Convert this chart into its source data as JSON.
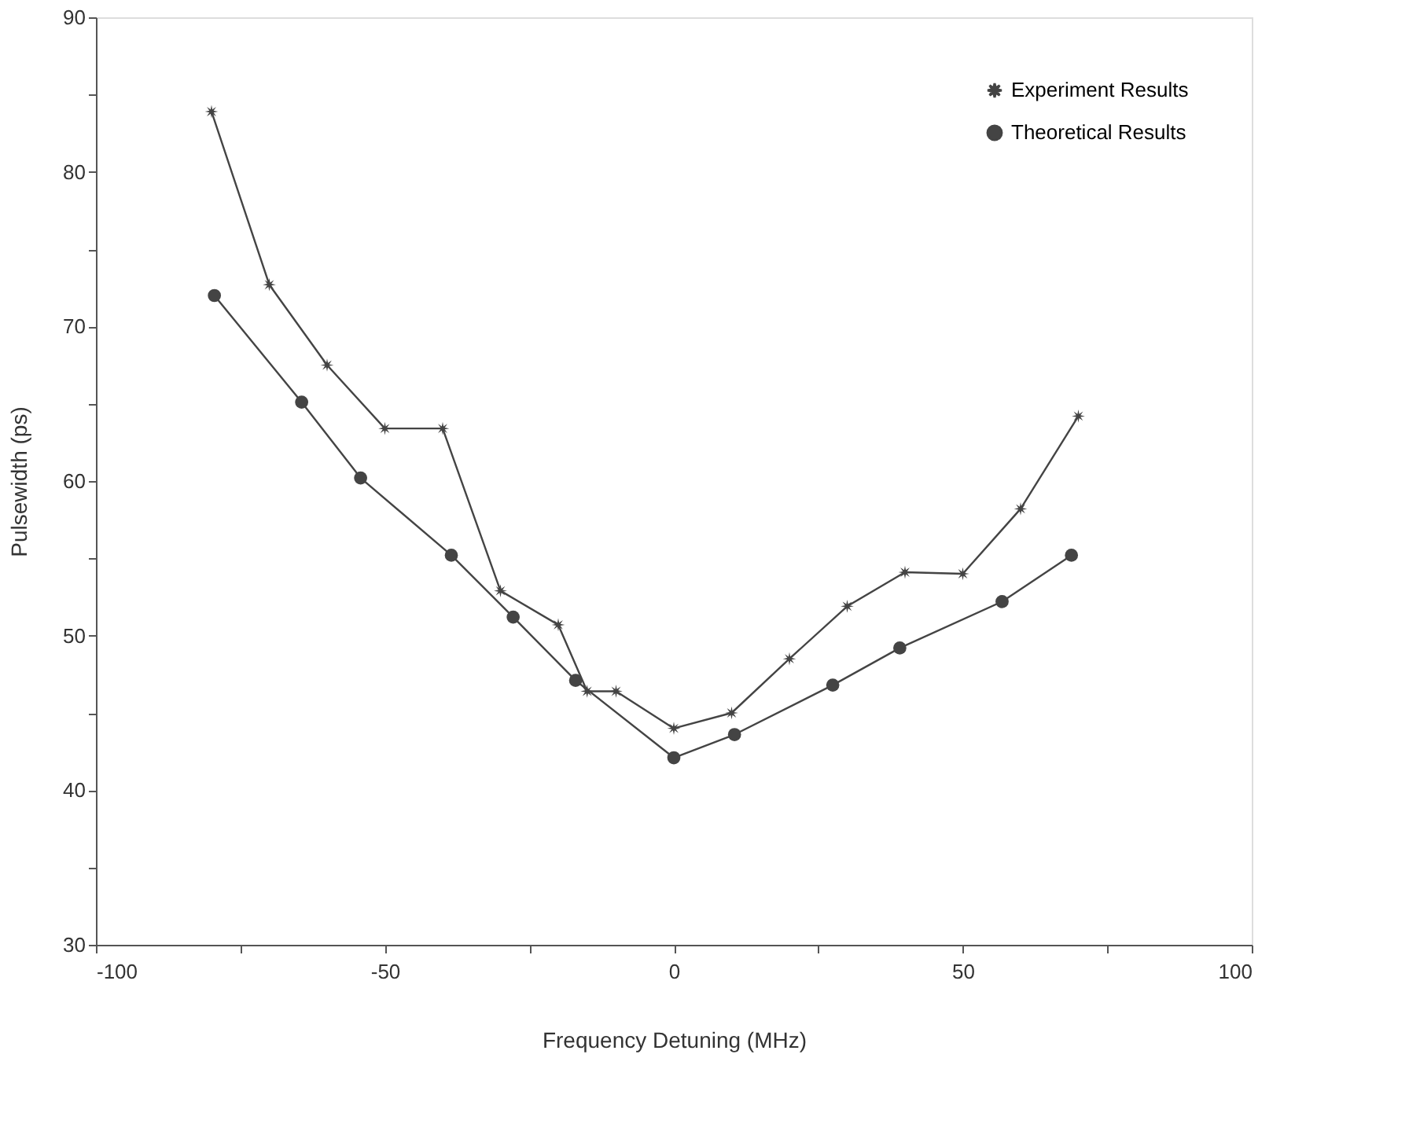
{
  "chart_data": {
    "type": "line",
    "xlabel": "Frequency Detuning (MHz)",
    "ylabel": "Pulsewidth (ps)",
    "xlim": [
      -100,
      100
    ],
    "xticks": [
      -100,
      {
        "value": -75,
        "label": null
      },
      -50,
      {
        "value": -25,
        "label": null
      },
      0,
      {
        "value": 25,
        "label": null
      },
      50,
      {
        "value": 75,
        "label": null
      },
      100
    ],
    "ylim": [
      30,
      90
    ],
    "yticks": [
      30,
      {
        "value": 35,
        "label": null
      },
      40,
      {
        "value": 45,
        "label": null
      },
      50,
      {
        "value": 55,
        "label": null
      },
      60,
      {
        "value": 65,
        "label": null
      },
      70,
      {
        "value": 75,
        "label": null
      },
      80,
      {
        "value": 85,
        "label": null
      },
      90
    ],
    "grid": false,
    "legend": "top right",
    "line_style": "solid",
    "series": [
      {
        "name": "Experiment Results",
        "color": "#444444",
        "marker": "star",
        "x": [
          -80,
          -70,
          -60,
          -50,
          -40,
          -30,
          -20,
          -15,
          -10,
          0,
          10,
          20,
          30,
          40,
          50,
          60,
          70
        ],
        "values": [
          83.9,
          72.7,
          67.5,
          63.4,
          63.4,
          52.9,
          50.7,
          46.4,
          46.4,
          44.0,
          45.0,
          48.5,
          51.9,
          54.1,
          54.0,
          58.2,
          64.2
        ]
      },
      {
        "name": "Theoretical Results",
        "color": "#444444",
        "marker": "circle",
        "x": [
          -79.5,
          -64.4,
          -54.2,
          -38.5,
          -27.8,
          -17,
          0,
          10.5,
          27.5,
          39.1,
          56.8,
          68.8
        ],
        "values": [
          72.0,
          65.1,
          60.2,
          55.2,
          51.2,
          47.1,
          42.1,
          43.6,
          46.8,
          49.2,
          52.2,
          55.2
        ]
      }
    ]
  }
}
